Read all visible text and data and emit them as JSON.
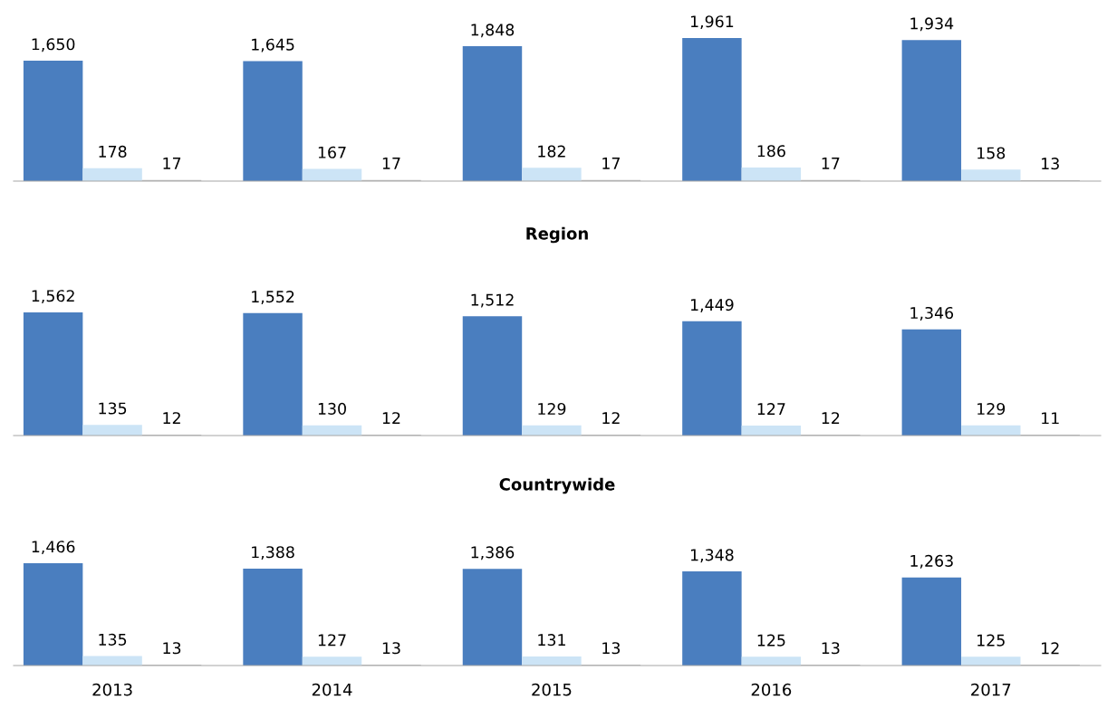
{
  "chart_data": [
    {
      "type": "bar",
      "categories": [
        "2013",
        "2014",
        "2015",
        "2016",
        "2017"
      ],
      "tick_labels": false,
      "series": [
        {
          "color": "#4a7ebf",
          "values": [
            1650,
            1645,
            1848,
            1961,
            1934
          ],
          "value_labels": [
            "1,650",
            "1,645",
            "1,848",
            "1,961",
            "1,934"
          ]
        },
        {
          "color": "#cce4f6",
          "values": [
            178,
            167,
            182,
            186,
            158
          ],
          "value_labels": [
            "178",
            "167",
            "182",
            "186",
            "158"
          ]
        },
        {
          "color": "#bfbfbf",
          "values": [
            17,
            17,
            17,
            17,
            13
          ],
          "value_labels": [
            "17",
            "17",
            "17",
            "17",
            "13"
          ]
        }
      ]
    },
    {
      "type": "bar",
      "title": "Region",
      "categories": [
        "2013",
        "2014",
        "2015",
        "2016",
        "2017"
      ],
      "tick_labels": false,
      "series": [
        {
          "color": "#4a7ebf",
          "values": [
            1562,
            1552,
            1512,
            1449,
            1346
          ],
          "value_labels": [
            "1,562",
            "1,552",
            "1,512",
            "1,449",
            "1,346"
          ]
        },
        {
          "color": "#cce4f6",
          "values": [
            135,
            130,
            129,
            127,
            129
          ],
          "value_labels": [
            "135",
            "130",
            "129",
            "127",
            "129"
          ]
        },
        {
          "color": "#bfbfbf",
          "values": [
            12,
            12,
            12,
            12,
            11
          ],
          "value_labels": [
            "12",
            "12",
            "12",
            "12",
            "11"
          ]
        }
      ]
    },
    {
      "type": "bar",
      "title": "Countrywide",
      "categories": [
        "2013",
        "2014",
        "2015",
        "2016",
        "2017"
      ],
      "series": [
        {
          "color": "#4a7ebf",
          "values": [
            1466,
            1388,
            1386,
            1348,
            1263
          ],
          "value_labels": [
            "1,466",
            "1,388",
            "1,386",
            "1,348",
            "1,263"
          ]
        },
        {
          "color": "#cce4f6",
          "values": [
            135,
            127,
            131,
            125,
            125
          ],
          "value_labels": [
            "135",
            "127",
            "131",
            "125",
            "125"
          ]
        },
        {
          "color": "#bfbfbf",
          "values": [
            13,
            13,
            13,
            13,
            12
          ],
          "value_labels": [
            "13",
            "13",
            "13",
            "13",
            "12"
          ]
        }
      ]
    }
  ]
}
